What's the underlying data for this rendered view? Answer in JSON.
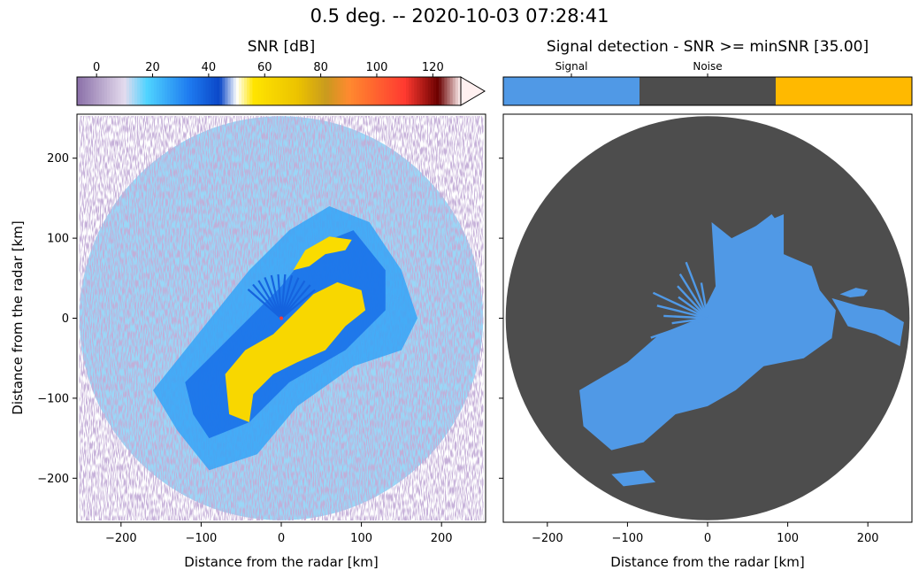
{
  "figure": {
    "suptitle": "0.5 deg. -- 2020-10-03 07:28:41"
  },
  "colors": {
    "signal": "#5099e6",
    "noise": "#4d4d4d",
    "third_class": "#ffb900",
    "background": "#ffffff"
  },
  "chart_data": [
    {
      "type": "heatmap",
      "title": "SNR [dB]",
      "projection": "polar-ppi",
      "xlabel": "Distance from the radar [km]",
      "ylabel": "Distance from the radar [km]",
      "xlim": [
        -255,
        255
      ],
      "ylim": [
        -255,
        255
      ],
      "xticks": [
        -200,
        -100,
        0,
        100,
        200
      ],
      "yticks": [
        -200,
        -100,
        0,
        100,
        200
      ],
      "xtick_labels": [
        "−200",
        "−100",
        "0",
        "100",
        "200"
      ],
      "ytick_labels": [
        "−200",
        "−100",
        "0",
        "100",
        "200"
      ],
      "range_max_km": 252,
      "colorbar": {
        "label": "SNR [dB]",
        "range": [
          -7,
          130
        ],
        "extend": "max",
        "ticks": [
          0,
          20,
          40,
          60,
          80,
          100,
          120
        ],
        "tick_labels": [
          "0",
          "20",
          "40",
          "60",
          "80",
          "100",
          "120"
        ],
        "stops": [
          {
            "value": -7,
            "color": "#8a6fa8"
          },
          {
            "value": 10,
            "color": "#e4dbee"
          },
          {
            "value": 18,
            "color": "#4fd3ff"
          },
          {
            "value": 33,
            "color": "#1e7bf0"
          },
          {
            "value": 44,
            "color": "#0b47c8"
          },
          {
            "value": 50,
            "color": "#ffffff"
          },
          {
            "value": 56,
            "color": "#ffe400"
          },
          {
            "value": 72,
            "color": "#ebc200"
          },
          {
            "value": 82,
            "color": "#c99a1e"
          },
          {
            "value": 90,
            "color": "#ff8a2f"
          },
          {
            "value": 110,
            "color": "#ff3a30"
          },
          {
            "value": 122,
            "color": "#6a0000"
          },
          {
            "value": 130,
            "color": "#fff2f2"
          }
        ]
      },
      "echoes": {
        "main_band": {
          "x_km": [
            -70,
            110
          ],
          "y_km": [
            -130,
            45
          ],
          "snr_db": 62
        },
        "north_arm": {
          "x_km": [
            15,
            90
          ],
          "y_km": [
            60,
            105
          ],
          "snr_db": 60
        },
        "surrounding_moderate": {
          "snr_db": 35
        }
      }
    },
    {
      "type": "heatmap",
      "title": "Signal detection - SNR >= minSNR [35.00]",
      "projection": "polar-ppi",
      "xlabel": "Distance from the radar [km]",
      "xlim": [
        -255,
        255
      ],
      "ylim": [
        -255,
        255
      ],
      "xticks": [
        -200,
        -100,
        0,
        100,
        200
      ],
      "yticks": [
        -200,
        -100,
        0,
        100,
        200
      ],
      "xtick_labels": [
        "−200",
        "−100",
        "0",
        "100",
        "200"
      ],
      "range_max_km": 252,
      "min_snr_db": 35.0,
      "colorbar": {
        "categories": [
          "Signal",
          "Noise",
          ""
        ],
        "colors": [
          "#5099e6",
          "#4d4d4d",
          "#ffb900"
        ]
      }
    }
  ]
}
